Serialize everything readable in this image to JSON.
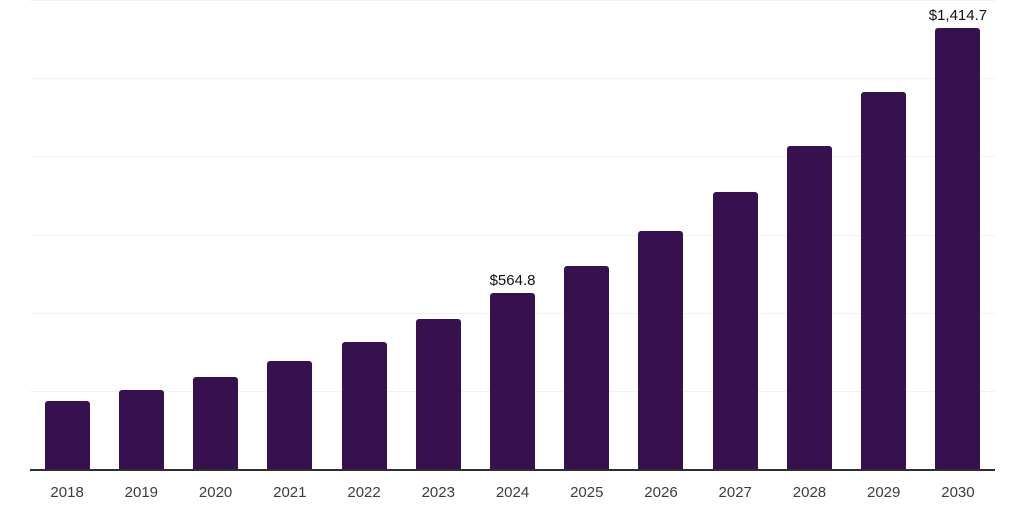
{
  "chart_data": {
    "type": "bar",
    "title": "",
    "xlabel": "",
    "ylabel": "",
    "categories": [
      "2018",
      "2019",
      "2020",
      "2021",
      "2022",
      "2023",
      "2024",
      "2025",
      "2026",
      "2027",
      "2028",
      "2029",
      "2030"
    ],
    "values": [
      222.0,
      254.5,
      299.0,
      350.0,
      409.0,
      481.5,
      564.8,
      654.0,
      763.0,
      888.5,
      1037.0,
      1208.0,
      1414.7
    ],
    "data_labels": [
      "",
      "",
      "",
      "",
      "",
      "",
      "$564.8",
      "",
      "",
      "",
      "",
      "",
      "$1,414.7"
    ],
    "ylim": [
      0,
      1500
    ],
    "gridline_interval": 250,
    "grid": true,
    "legend": "none",
    "bar_color": "#37114d",
    "gridline_color": "#f2f2f2",
    "axis_line_color": "#2e2e2e",
    "tick_label_color": "#3d3d3d",
    "data_label_color": "#111111",
    "background_color": "#ffffff"
  }
}
